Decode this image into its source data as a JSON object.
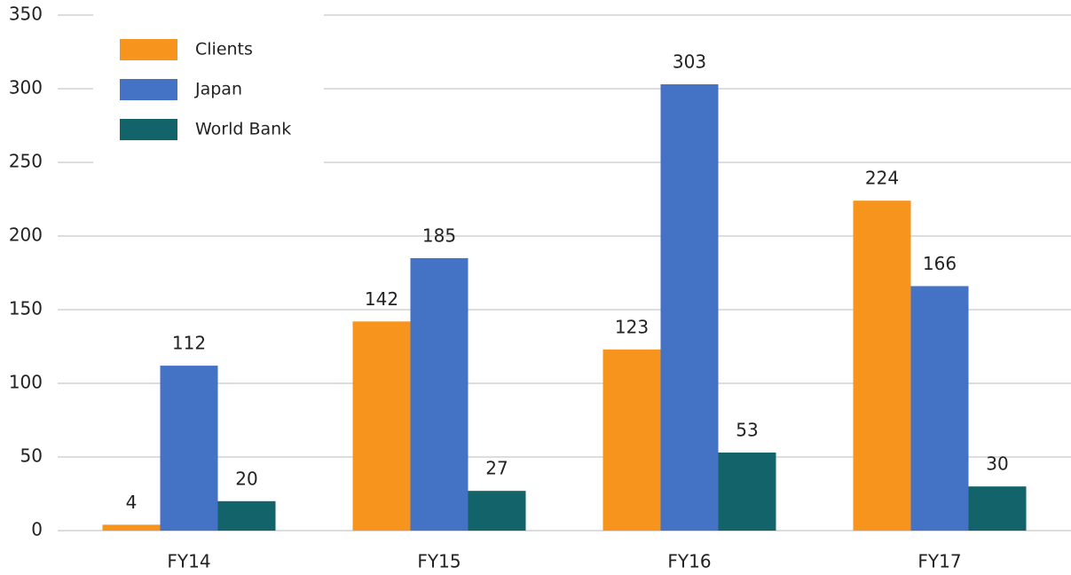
{
  "chart_data": {
    "type": "bar",
    "categories": [
      "FY14",
      "FY15",
      "FY16",
      "FY17"
    ],
    "series": [
      {
        "name": "Clients",
        "color": "#f7941d",
        "values": [
          4,
          142,
          123,
          224
        ]
      },
      {
        "name": "Japan",
        "color": "#4472c4",
        "values": [
          112,
          185,
          303,
          166
        ]
      },
      {
        "name": "World Bank",
        "color": "#12636a",
        "values": [
          20,
          27,
          53,
          30
        ]
      }
    ],
    "ylim": [
      0,
      350
    ],
    "yticks": [
      0,
      50,
      100,
      150,
      200,
      250,
      300,
      350
    ],
    "grid": true,
    "legend": "upper left"
  }
}
